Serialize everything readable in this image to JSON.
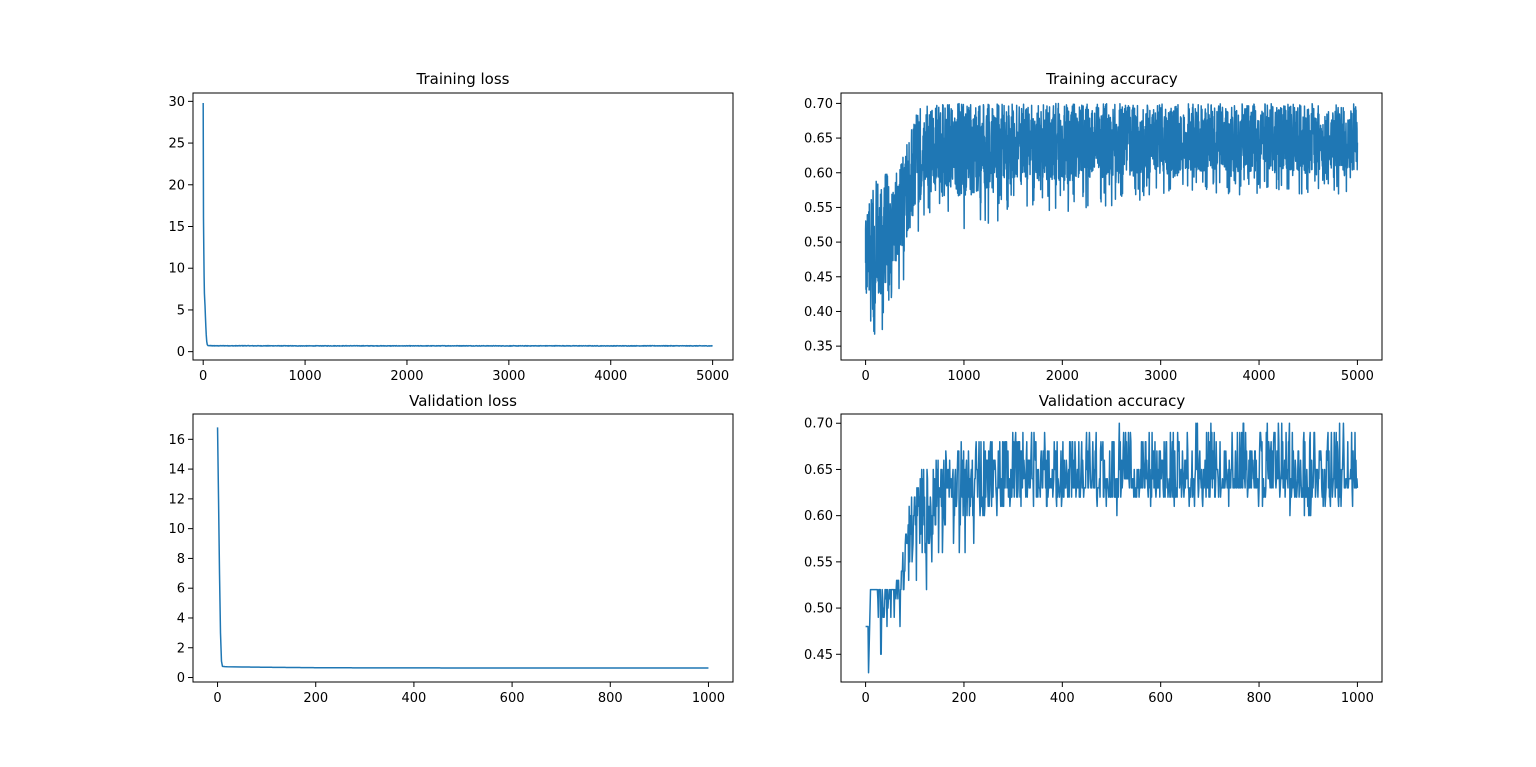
{
  "colors": {
    "series": "#1f77b4",
    "frame": "#000000",
    "background": "#ffffff"
  },
  "chart_data": [
    {
      "type": "line",
      "title": "Training loss",
      "xlim": [
        -100,
        5200
      ],
      "ylim": [
        -1,
        31
      ],
      "xticks": [
        0,
        1000,
        2000,
        3000,
        4000,
        5000
      ],
      "yticks": [
        0,
        5,
        10,
        15,
        20,
        25,
        30
      ],
      "grid": false,
      "series": [
        {
          "x": [
            0,
            3,
            6,
            9,
            12,
            15,
            18,
            22,
            26,
            30,
            35,
            40,
            45,
            50,
            60,
            80,
            100,
            150,
            200,
            300,
            400,
            500,
            700,
            1000,
            1500,
            2000,
            2500,
            3000,
            3500,
            4000,
            4500,
            5000
          ],
          "y": [
            29.8,
            16.0,
            12.2,
            9.0,
            7.0,
            6.2,
            5.5,
            4.2,
            3.0,
            2.0,
            1.2,
            0.85,
            0.75,
            0.72,
            0.72,
            0.71,
            0.71,
            0.7,
            0.71,
            0.7,
            0.71,
            0.7,
            0.7,
            0.69,
            0.7,
            0.69,
            0.7,
            0.69,
            0.7,
            0.69,
            0.7,
            0.69
          ],
          "noise": 0.06
        }
      ]
    },
    {
      "type": "line",
      "title": "Training accuracy",
      "xlim": [
        -250,
        5250
      ],
      "ylim": [
        0.33,
        0.715
      ],
      "xticks": [
        0,
        1000,
        2000,
        3000,
        4000,
        5000
      ],
      "yticks": [
        0.35,
        0.4,
        0.45,
        0.5,
        0.55,
        0.6,
        0.65,
        0.7
      ],
      "grid": false,
      "series": [
        {
          "x": [
            0,
            100,
            200,
            300,
            400,
            500,
            600,
            800,
            1000,
            1500,
            2000,
            3000,
            4000,
            5000
          ],
          "center": [
            0.47,
            0.5,
            0.52,
            0.54,
            0.56,
            0.6,
            0.63,
            0.64,
            0.645,
            0.645,
            0.645,
            0.645,
            0.645,
            0.645
          ],
          "low": [
            0.41,
            0.35,
            0.37,
            0.41,
            0.45,
            0.49,
            0.54,
            0.535,
            0.495,
            0.545,
            0.54,
            0.565,
            0.565,
            0.57
          ],
          "high": [
            0.53,
            0.6,
            0.6,
            0.6,
            0.63,
            0.69,
            0.7,
            0.7,
            0.7,
            0.7,
            0.7,
            0.7,
            0.7,
            0.7
          ],
          "points": 2500
        }
      ]
    },
    {
      "type": "line",
      "title": "Validation loss",
      "xlim": [
        -50,
        1050
      ],
      "ylim": [
        -0.3,
        17.7
      ],
      "xticks": [
        0,
        200,
        400,
        600,
        800,
        1000
      ],
      "yticks": [
        0,
        2,
        4,
        6,
        8,
        10,
        12,
        14,
        16
      ],
      "grid": false,
      "series": [
        {
          "x": [
            0,
            2,
            4,
            6,
            8,
            10,
            15,
            20,
            50,
            100,
            200,
            300,
            400,
            500,
            600,
            700,
            800,
            900,
            1000
          ],
          "y": [
            16.8,
            12.0,
            7.0,
            3.0,
            1.1,
            0.75,
            0.73,
            0.72,
            0.71,
            0.69,
            0.66,
            0.65,
            0.65,
            0.64,
            0.64,
            0.64,
            0.64,
            0.64,
            0.64
          ]
        }
      ]
    },
    {
      "type": "line",
      "title": "Validation accuracy",
      "xlim": [
        -50,
        1050
      ],
      "ylim": [
        0.42,
        0.71
      ],
      "xticks": [
        0,
        200,
        400,
        600,
        800,
        1000
      ],
      "yticks": [
        0.45,
        0.5,
        0.55,
        0.6,
        0.65,
        0.7
      ],
      "grid": false,
      "series": [
        {
          "x": [
            0,
            5,
            6,
            10,
            30,
            50,
            70,
            80,
            90,
            100,
            120,
            150,
            200,
            250,
            300,
            400,
            500,
            600,
            700,
            800,
            900,
            1000
          ],
          "center": [
            0.48,
            0.48,
            0.43,
            0.52,
            0.515,
            0.515,
            0.52,
            0.55,
            0.58,
            0.6,
            0.615,
            0.62,
            0.625,
            0.63,
            0.635,
            0.64,
            0.64,
            0.64,
            0.64,
            0.64,
            0.64,
            0.64
          ],
          "low": [
            0.48,
            0.48,
            0.43,
            0.44,
            0.44,
            0.49,
            0.48,
            0.51,
            0.52,
            0.52,
            0.51,
            0.55,
            0.56,
            0.59,
            0.61,
            0.605,
            0.6,
            0.61,
            0.61,
            0.61,
            0.6,
            0.61
          ],
          "high": [
            0.48,
            0.48,
            0.43,
            0.52,
            0.52,
            0.52,
            0.54,
            0.59,
            0.62,
            0.62,
            0.67,
            0.67,
            0.68,
            0.69,
            0.69,
            0.69,
            0.7,
            0.69,
            0.7,
            0.7,
            0.7,
            0.7
          ],
          "points": 1000,
          "start_step": 20
        }
      ]
    }
  ]
}
